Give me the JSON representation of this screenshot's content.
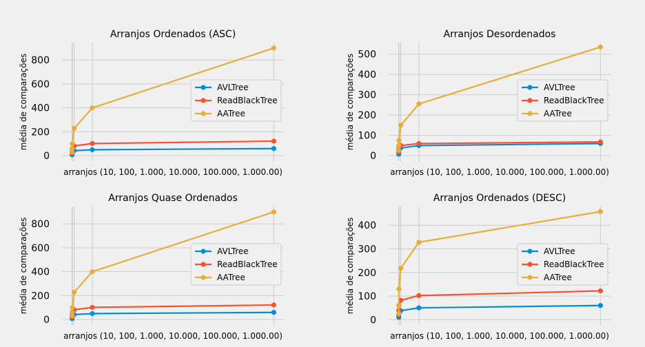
{
  "chart_data": [
    {
      "type": "line",
      "title": "Arranjos Ordenados (ASC)",
      "xlabel": "arranjos (10, 100, 1.000, 10.000, 100.000, 1.000.00)",
      "ylabel": "média de comparações",
      "x": [
        10,
        100,
        1000,
        10000,
        100000,
        1000000
      ],
      "xlim": [
        -50000,
        1050000
      ],
      "ylim": [
        -45,
        945
      ],
      "yticks": [
        0,
        200,
        400,
        600,
        800
      ],
      "grid": true,
      "legend": "center-right",
      "series": [
        {
          "name": "AVLTree",
          "color": "#008fd5",
          "values": [
            8,
            20,
            28,
            42,
            50,
            60
          ]
        },
        {
          "name": "ReadBlackTree",
          "color": "#fc4f30",
          "values": [
            22,
            42,
            60,
            82,
            102,
            122
          ]
        },
        {
          "name": "AATree",
          "color": "#e5ae38",
          "values": [
            30,
            60,
            100,
            228,
            400,
            900
          ]
        }
      ]
    },
    {
      "type": "line",
      "title": "Arranjos Desordenados",
      "xlabel": "arranjos (10, 100, 1.000, 10.000, 100.000, 1.000.00)",
      "ylabel": "média de comparações",
      "x": [
        10,
        100,
        1000,
        10000,
        100000,
        1000000
      ],
      "xlim": [
        -50000,
        1050000
      ],
      "ylim": [
        -26.5,
        556.5
      ],
      "yticks": [
        0,
        100,
        200,
        300,
        400,
        500
      ],
      "grid": true,
      "legend": "center-right",
      "series": [
        {
          "name": "AVLTree",
          "color": "#008fd5",
          "values": [
            8,
            15,
            25,
            38,
            50,
            60
          ]
        },
        {
          "name": "ReadBlackTree",
          "color": "#fc4f30",
          "values": [
            18,
            30,
            40,
            50,
            60,
            68
          ]
        },
        {
          "name": "AATree",
          "color": "#e5ae38",
          "values": [
            25,
            50,
            75,
            150,
            255,
            535
          ]
        }
      ]
    },
    {
      "type": "line",
      "title": "Arranjos Quase Ordenados",
      "xlabel": "arranjos (10, 100, 1.000, 10.000, 100.000, 1.000.00)",
      "ylabel": "média de comparações",
      "x": [
        10,
        100,
        1000,
        10000,
        100000,
        1000000
      ],
      "xlim": [
        -50000,
        1050000
      ],
      "ylim": [
        -45,
        945
      ],
      "yticks": [
        0,
        200,
        400,
        600,
        800
      ],
      "grid": true,
      "legend": "center-right",
      "series": [
        {
          "name": "AVLTree",
          "color": "#008fd5",
          "values": [
            8,
            20,
            28,
            42,
            50,
            60
          ]
        },
        {
          "name": "ReadBlackTree",
          "color": "#fc4f30",
          "values": [
            22,
            42,
            60,
            82,
            102,
            122
          ]
        },
        {
          "name": "AATree",
          "color": "#e5ae38",
          "values": [
            30,
            60,
            100,
            228,
            400,
            900
          ]
        }
      ]
    },
    {
      "type": "line",
      "title": "Arranjos Ordenados (DESC)",
      "xlabel": "arranjos (10, 100, 1.000, 10.000, 100.000, 1.000.00)",
      "ylabel": "média de comparações",
      "x": [
        10,
        100,
        1000,
        10000,
        100000,
        1000000
      ],
      "xlim": [
        -50000,
        1050000
      ],
      "ylim": [
        -22.5,
        479.5
      ],
      "yticks": [
        0,
        100,
        200,
        300,
        400
      ],
      "grid": true,
      "legend": "center-right",
      "series": [
        {
          "name": "AVLTree",
          "color": "#008fd5",
          "values": [
            10,
            15,
            25,
            38,
            50,
            60
          ]
        },
        {
          "name": "ReadBlackTree",
          "color": "#fc4f30",
          "values": [
            20,
            40,
            60,
            82,
            102,
            122
          ]
        },
        {
          "name": "AATree",
          "color": "#e5ae38",
          "values": [
            25,
            60,
            130,
            218,
            328,
            458
          ]
        }
      ]
    }
  ]
}
